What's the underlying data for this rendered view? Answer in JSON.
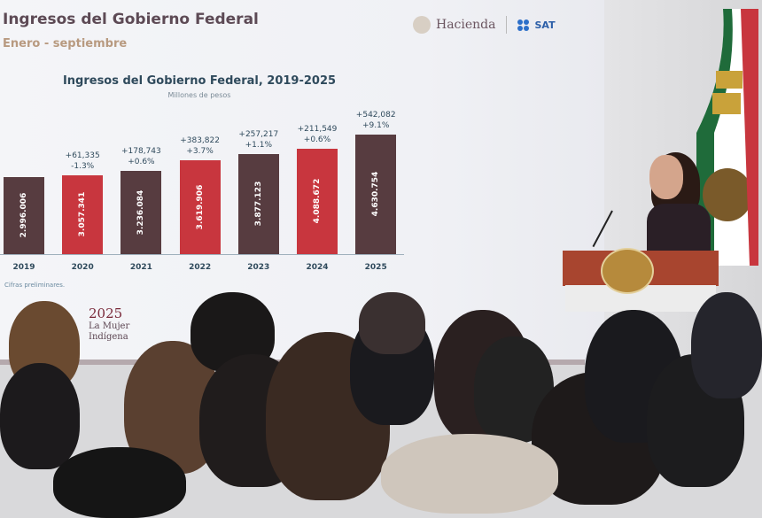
{
  "slide": {
    "title": "Ingresos del Gobierno Federal",
    "subtitle": "Enero - septiembre",
    "logos": {
      "hacienda": "Hacienda",
      "sat": "SAT"
    },
    "footnote": "Cifras preliminares.",
    "year_logo": {
      "year": "2025",
      "line1": "La Mujer",
      "line2": "Indígena"
    }
  },
  "colors": {
    "dark_bar": "#573c40",
    "red_bar": "#c8363e",
    "text": "#2f4a5c"
  },
  "chart_data": {
    "type": "bar",
    "title": "Ingresos del Gobierno Federal, 2019-2025",
    "subtitle": "Millones de pesos",
    "categories": [
      "2019",
      "2020",
      "2021",
      "2022",
      "2023",
      "2024",
      "2025"
    ],
    "values": [
      2996006,
      3057341,
      3236084,
      3619906,
      3877123,
      4088672,
      4630754
    ],
    "value_labels": [
      "2.996.006",
      "3.057.341",
      "3.236.084",
      "3.619.906",
      "3.877.123",
      "4.088.672",
      "4.630.754"
    ],
    "change_labels": [
      null,
      "+61,335",
      "+178,743",
      "+383,822",
      "+257,217",
      "+211,549",
      "+542,082"
    ],
    "pct_labels": [
      null,
      "-1.3%",
      "+0.6%",
      "+3.7%",
      "+1.1%",
      "+0.6%",
      "+9.1%"
    ],
    "bar_colors": [
      "#573c40",
      "#c8363e",
      "#573c40",
      "#c8363e",
      "#573c40",
      "#c8363e",
      "#573c40"
    ],
    "ylim": [
      0,
      4800000
    ],
    "grid": false
  }
}
